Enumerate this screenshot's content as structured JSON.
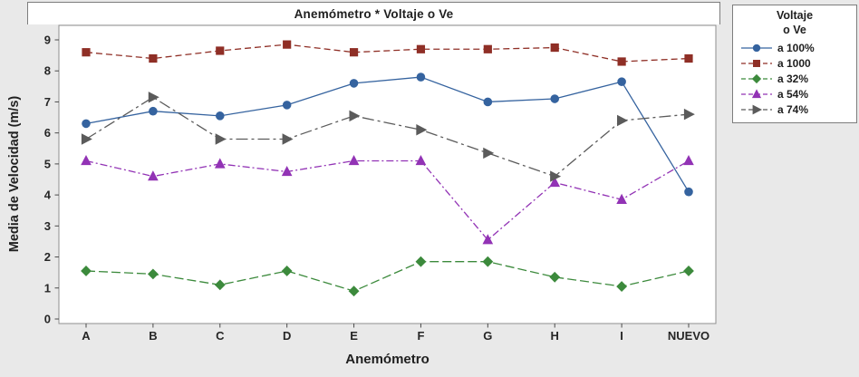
{
  "chart_data": {
    "type": "line",
    "title": "Anemómetro * Voltaje o Ve",
    "xlabel": "Anemómetro",
    "ylabel": "Media de Velocidad (m/s)",
    "categories": [
      "A",
      "B",
      "C",
      "D",
      "E",
      "F",
      "G",
      "H",
      "I",
      "NUEVO"
    ],
    "ylim": [
      0,
      9
    ],
    "yticks": [
      0,
      1,
      2,
      3,
      4,
      5,
      6,
      7,
      8,
      9
    ],
    "grid": false,
    "legend": {
      "title_line1": "Voltaje",
      "title_line2": "o Ve",
      "position": "right"
    },
    "series": [
      {
        "name": "a 100%",
        "color": "#35639f",
        "marker": "circle",
        "dash": "",
        "values": [
          6.3,
          6.7,
          6.55,
          6.9,
          7.6,
          7.8,
          7.0,
          7.1,
          7.65,
          4.1
        ]
      },
      {
        "name": "a 1000",
        "color": "#8f2f26",
        "marker": "square",
        "dash": "7,4",
        "values": [
          8.6,
          8.4,
          8.65,
          8.85,
          8.6,
          8.7,
          8.7,
          8.75,
          8.3,
          8.4
        ]
      },
      {
        "name": "a 32%",
        "color": "#3c8a3c",
        "marker": "diamond",
        "dash": "10,4",
        "values": [
          1.55,
          1.45,
          1.1,
          1.55,
          0.9,
          1.85,
          1.85,
          1.35,
          1.05,
          1.55
        ]
      },
      {
        "name": "a 54%",
        "color": "#9233b5",
        "marker": "triangle-up",
        "dash": "8,3,2,3",
        "values": [
          5.1,
          4.6,
          5.0,
          4.75,
          5.1,
          5.1,
          2.55,
          4.4,
          3.85,
          5.1
        ]
      },
      {
        "name": "a 74%",
        "color": "#5b5b5b",
        "marker": "triangle-right",
        "dash": "13,4,3,4",
        "values": [
          5.8,
          7.15,
          5.8,
          5.8,
          6.55,
          6.1,
          5.35,
          4.6,
          6.4,
          6.6
        ]
      }
    ]
  }
}
